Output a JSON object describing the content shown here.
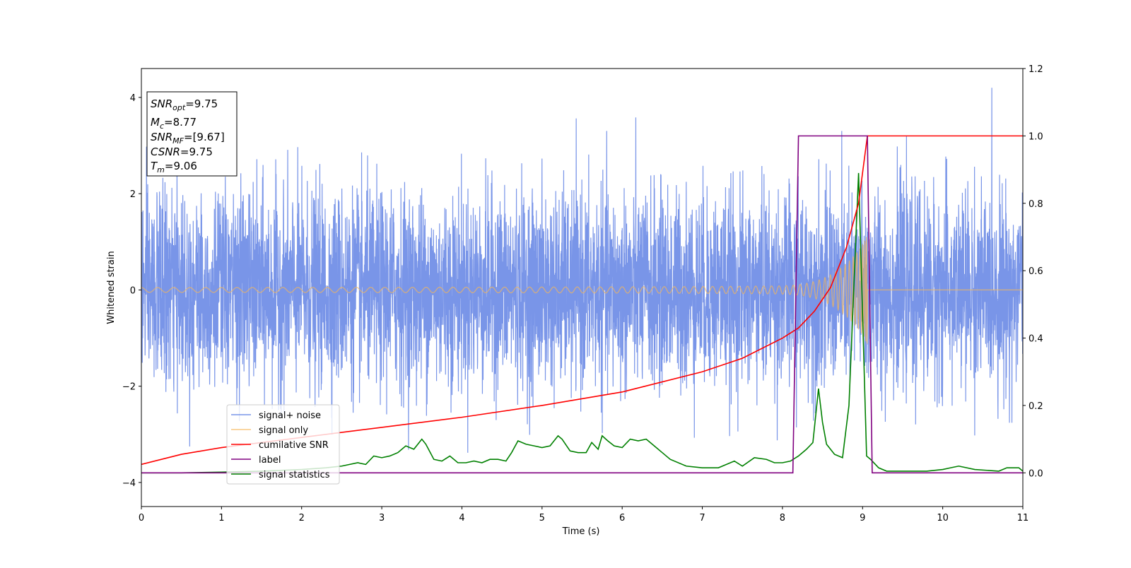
{
  "chart_data": {
    "type": "line",
    "xlabel": "Time (s)",
    "ylabel": "Whitened strain",
    "xlim": [
      0,
      11
    ],
    "ylim": [
      -4.5,
      4.6
    ],
    "y2lim": [
      -0.1,
      1.2
    ],
    "x_ticks": [
      0,
      1,
      2,
      3,
      4,
      5,
      6,
      7,
      8,
      9,
      10,
      11
    ],
    "y_ticks": [
      -4,
      -2,
      0,
      2,
      4
    ],
    "y2_ticks": [
      0.0,
      0.2,
      0.4,
      0.6,
      0.8,
      1.0,
      1.2
    ],
    "grid": false,
    "legend_position": "lower-left",
    "info_box": {
      "snr_opt": "9.75",
      "mc": "8.77",
      "snr_mf": "[9.67]",
      "csnr": "9.75",
      "tm": "9.06"
    },
    "series": [
      {
        "name": "signal+ noise",
        "color": "#6a8ae6",
        "axis": "left",
        "style": "noise",
        "noise_sigma": 1.0,
        "noise_range": [
          -4.1,
          4.2
        ]
      },
      {
        "name": "signal only",
        "color": "#f5b758",
        "axis": "left",
        "style": "chirp",
        "merger_time": 9.06,
        "peak_amplitude": 1.0,
        "start_amplitude": 0.05
      },
      {
        "name": "cumilative SNR",
        "color": "#ff0000",
        "axis": "right",
        "x": [
          0,
          0.5,
          1,
          2,
          3,
          4,
          5,
          6,
          7,
          7.5,
          8,
          8.2,
          8.4,
          8.6,
          8.8,
          8.95,
          9.06,
          9.07,
          11
        ],
        "y": [
          0.025,
          0.055,
          0.075,
          0.105,
          0.135,
          0.165,
          0.2,
          0.24,
          0.3,
          0.34,
          0.4,
          0.43,
          0.48,
          0.55,
          0.67,
          0.8,
          1.0,
          1.0,
          1.0
        ]
      },
      {
        "name": "label",
        "color": "#800080",
        "axis": "right",
        "x": [
          0,
          8.13,
          8.2,
          9.06,
          9.12,
          11
        ],
        "y": [
          0.0,
          0.0,
          1.0,
          1.0,
          0.0,
          0.0
        ]
      },
      {
        "name": "signal statistics",
        "color": "#008000",
        "axis": "right",
        "x": [
          0,
          0.5,
          1,
          1.5,
          2,
          2.3,
          2.5,
          2.7,
          2.8,
          2.9,
          3.0,
          3.1,
          3.2,
          3.3,
          3.4,
          3.5,
          3.55,
          3.65,
          3.75,
          3.85,
          3.95,
          4.05,
          4.15,
          4.25,
          4.35,
          4.45,
          4.55,
          4.62,
          4.7,
          4.8,
          4.9,
          5.0,
          5.1,
          5.2,
          5.25,
          5.35,
          5.45,
          5.55,
          5.62,
          5.7,
          5.75,
          5.82,
          5.9,
          6.0,
          6.1,
          6.2,
          6.3,
          6.4,
          6.5,
          6.6,
          6.8,
          7.0,
          7.2,
          7.4,
          7.5,
          7.65,
          7.8,
          7.9,
          8.0,
          8.1,
          8.2,
          8.3,
          8.38,
          8.45,
          8.5,
          8.55,
          8.65,
          8.75,
          8.83,
          8.95,
          9.05,
          9.1,
          9.2,
          9.3,
          9.5,
          9.8,
          10.0,
          10.1,
          10.2,
          10.4,
          10.7,
          10.8,
          10.95,
          11
        ],
        "y": [
          0.0,
          0.0,
          0.002,
          0.005,
          0.01,
          0.015,
          0.02,
          0.03,
          0.025,
          0.05,
          0.045,
          0.05,
          0.06,
          0.08,
          0.07,
          0.1,
          0.085,
          0.04,
          0.035,
          0.05,
          0.03,
          0.03,
          0.035,
          0.03,
          0.04,
          0.04,
          0.035,
          0.06,
          0.095,
          0.085,
          0.08,
          0.075,
          0.08,
          0.11,
          0.1,
          0.065,
          0.06,
          0.06,
          0.09,
          0.07,
          0.11,
          0.095,
          0.08,
          0.075,
          0.1,
          0.095,
          0.1,
          0.08,
          0.06,
          0.04,
          0.02,
          0.015,
          0.015,
          0.035,
          0.02,
          0.045,
          0.04,
          0.03,
          0.03,
          0.035,
          0.05,
          0.07,
          0.09,
          0.25,
          0.15,
          0.085,
          0.055,
          0.045,
          0.2,
          0.89,
          0.05,
          0.04,
          0.015,
          0.005,
          0.005,
          0.005,
          0.01,
          0.015,
          0.02,
          0.01,
          0.005,
          0.015,
          0.015,
          0.005
        ]
      }
    ]
  }
}
